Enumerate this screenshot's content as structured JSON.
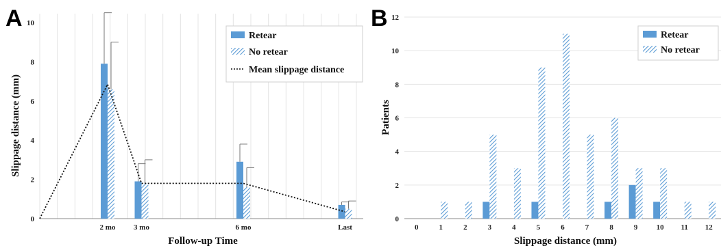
{
  "chart_data": [
    {
      "panel": "A",
      "type": "bar",
      "xlabel": "Follow-up Time",
      "ylabel": "Slippage distance (mm)",
      "ylim": [
        0,
        10
      ],
      "yticks": [
        0,
        2,
        4,
        6,
        8,
        10
      ],
      "categories": [
        "2 mo",
        "3 mo",
        "6 mo",
        "Last"
      ],
      "category_x_days": [
        60,
        90,
        180,
        270
      ],
      "xlim_days": [
        0,
        280
      ],
      "series": [
        {
          "name": "Retear",
          "style": "solid",
          "color": "#5b9bd5",
          "values": [
            7.9,
            1.9,
            2.9,
            0.7
          ],
          "error": [
            2.6,
            0.9,
            0.9,
            0.15
          ]
        },
        {
          "name": "No retear",
          "style": "hatched",
          "color": "#5b9bd5",
          "values": [
            6.6,
            1.8,
            1.6,
            0.5
          ],
          "error": [
            2.4,
            1.2,
            1.0,
            0.4
          ]
        }
      ],
      "line": {
        "name": "Mean slippage distance",
        "style": "dotted",
        "x_days": [
          0,
          60,
          90,
          180,
          270
        ],
        "values": [
          0,
          6.85,
          1.8,
          1.8,
          0.35
        ]
      },
      "legend_position": "top-right",
      "grid": "vertical"
    },
    {
      "panel": "B",
      "type": "bar",
      "xlabel": "Slippage distance (mm)",
      "ylabel": "Patients",
      "ylim": [
        0,
        12
      ],
      "yticks": [
        0,
        2,
        4,
        6,
        8,
        10,
        12
      ],
      "categories": [
        "0",
        "1",
        "2",
        "3",
        "4",
        "5",
        "6",
        "7",
        "8",
        "9",
        "10",
        "11",
        "12"
      ],
      "series": [
        {
          "name": "Retear",
          "style": "solid",
          "color": "#5b9bd5",
          "values": [
            0,
            0,
            0,
            1,
            0,
            1,
            0,
            0,
            1,
            2,
            1,
            0,
            0
          ]
        },
        {
          "name": "No retear",
          "style": "hatched",
          "color": "#5b9bd5",
          "values": [
            0,
            1,
            1,
            5,
            3,
            9,
            11,
            5,
            6,
            3,
            3,
            1,
            1
          ]
        }
      ],
      "legend_position": "top-right",
      "grid": "horizontal"
    }
  ]
}
